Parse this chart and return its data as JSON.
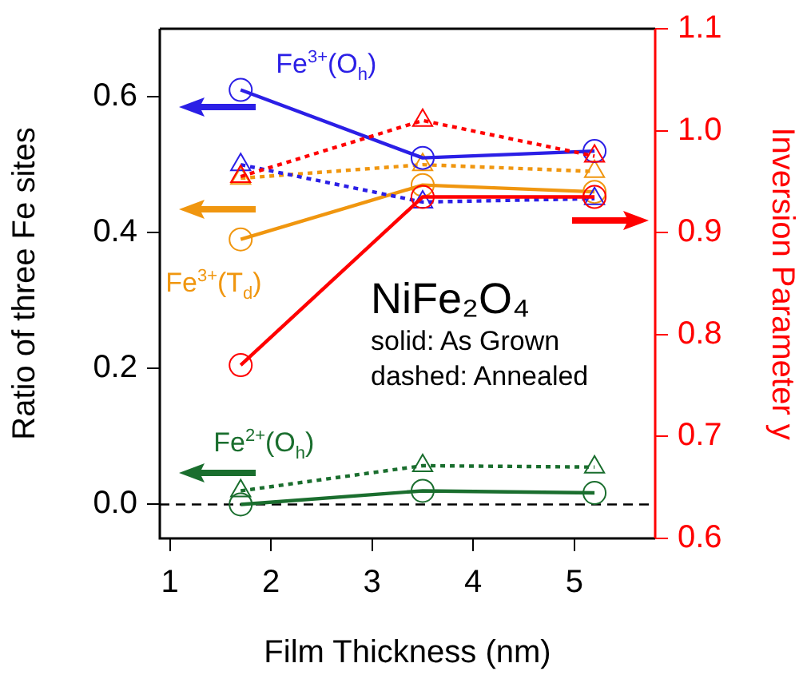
{
  "chart_data": {
    "type": "line",
    "xlabel": "Film Thickness (nm)",
    "ylabel": "Ratio of three Fe sites",
    "y2label": "Inversion Parameter y",
    "x": [
      1.7,
      3.5,
      5.2
    ],
    "xlim": [
      0.9,
      5.8
    ],
    "xticks": [
      1,
      2,
      3,
      4,
      5
    ],
    "ylim": [
      -0.05,
      0.7
    ],
    "yticks": [
      {
        "value": 0,
        "label": "0.0"
      },
      0.2,
      0.4,
      0.6
    ],
    "y2lim": [
      0.6,
      1.1
    ],
    "y2ticks": [
      0.6,
      0.7,
      0.8,
      0.9,
      {
        "value": 1,
        "label": "1.0"
      },
      1.1
    ],
    "grid": false,
    "legend": "left",
    "series": [
      {
        "name": "Fe$^{3+}$(O$_{h}$)",
        "color": "#2b1fe6",
        "values": [
          0.61,
          0.51,
          0.52
        ],
        "marker": "circle",
        "line_style": "solid"
      },
      {
        "color": "#2b1fe6",
        "values": [
          0.5,
          0.445,
          0.45
        ],
        "marker": "triangle",
        "line_style": "dotted"
      },
      {
        "name": "Fe$^{3+}$(T$_{d}$)",
        "color": "#f0960f",
        "values": [
          0.39,
          0.47,
          0.46
        ],
        "marker": "circle",
        "line_style": "solid"
      },
      {
        "color": "#f0960f",
        "values": [
          0.48,
          0.5,
          0.49
        ],
        "marker": "triangle",
        "line_style": "dotted"
      },
      {
        "color": "#ff0000",
        "values": [
          0.77,
          0.935,
          0.935
        ],
        "marker": "circle",
        "line_style": "solid",
        "axis": "y2"
      },
      {
        "color": "#ff0000",
        "values": [
          0.955,
          1.01,
          0.975
        ],
        "marker": "triangle",
        "line_style": "dotted",
        "axis": "y2"
      },
      {
        "name": "Fe$^{2+}$(O$_{h}$)",
        "color": "#1a6e2e",
        "values": [
          0.0,
          0.02,
          0.017
        ],
        "marker": "circle",
        "line_style": "solid"
      },
      {
        "color": "#1a6e2e",
        "values": [
          0.02,
          0.057,
          0.055
        ],
        "marker": "triangle",
        "line_style": "dotted"
      }
    ],
    "ref_lines": [
      {
        "axis": "y",
        "value": 0,
        "color": "#000000",
        "line_style": "dashed"
      }
    ],
    "annotations": [
      "NiFe₂O₄",
      "solid: As Grown",
      "dashed: Annealed"
    ]
  }
}
